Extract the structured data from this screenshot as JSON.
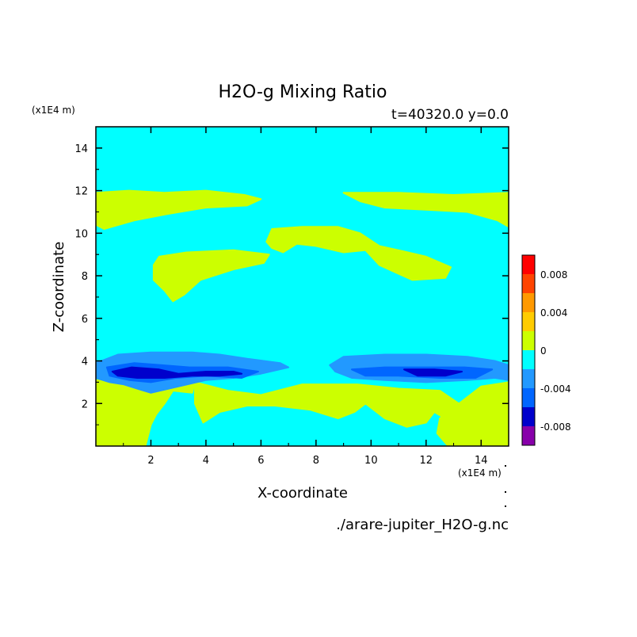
{
  "chart_data": {
    "type": "heatmap",
    "title": "H2O-g Mixing Ratio",
    "subtitle": "t=40320.0 y=0.0",
    "xlabel": "X-coordinate",
    "ylabel": "Z-coordinate",
    "x_unit": "(x1E4 m)",
    "y_unit": "(x1E4 m)",
    "source_file": "./arare-jupiter_H2O-g.nc",
    "xlim": [
      0,
      15
    ],
    "ylim": [
      0,
      15
    ],
    "x_ticks": [
      "2",
      "4",
      "6",
      "8",
      "10",
      "12",
      "14"
    ],
    "y_ticks": [
      "2",
      "4",
      "6",
      "8",
      "10",
      "12",
      "14"
    ],
    "grid": false,
    "legend_placement": "right",
    "colorbar": {
      "levels": [
        -0.01,
        -0.008,
        -0.006,
        -0.004,
        -0.002,
        0,
        0.002,
        0.004,
        0.006,
        0.008,
        0.01
      ],
      "colors": [
        "#8800aa",
        "#0000cc",
        "#0066ff",
        "#2299ff",
        "#00ffff",
        "#ccff00",
        "#ffcc00",
        "#ff9900",
        "#ff4400",
        "#ff0000",
        "#ffaaaa"
      ],
      "tick_labels": [
        "0.008",
        "0.004",
        "0",
        "-0.004",
        "-0.008"
      ],
      "tick_values": [
        0.008,
        0.004,
        0,
        -0.004,
        -0.008
      ]
    },
    "background_level_color": "#00ffff",
    "regions": [
      {
        "name": "upper-positive-band",
        "level": "0 to 0.002",
        "color": "#ccff00",
        "points": [
          [
            0,
            11.9
          ],
          [
            1.2,
            12
          ],
          [
            2.5,
            11.9
          ],
          [
            4,
            12
          ],
          [
            5.4,
            11.8
          ],
          [
            6,
            11.6
          ],
          [
            5.5,
            11.3
          ],
          [
            4,
            11.2
          ],
          [
            2.6,
            10.9
          ],
          [
            1.4,
            10.6
          ],
          [
            0.3,
            10.2
          ],
          [
            0,
            10.4
          ]
        ]
      },
      {
        "name": "upper-right-positive-band",
        "level": "0 to 0.002",
        "color": "#ccff00",
        "points": [
          [
            9,
            11.9
          ],
          [
            11,
            11.9
          ],
          [
            13,
            11.8
          ],
          [
            15,
            11.9
          ],
          [
            15,
            10.3
          ],
          [
            14.6,
            10.6
          ],
          [
            13.5,
            11
          ],
          [
            12,
            11.1
          ],
          [
            10.5,
            11.2
          ],
          [
            9.6,
            11.5
          ]
        ]
      },
      {
        "name": "middle-left-positive-patch",
        "level": "0 to 0.002",
        "color": "#ccff00",
        "points": [
          [
            2.3,
            8.9
          ],
          [
            3.3,
            9.1
          ],
          [
            5,
            9.2
          ],
          [
            6.3,
            9
          ],
          [
            6.1,
            8.6
          ],
          [
            5,
            8.3
          ],
          [
            3.8,
            7.8
          ],
          [
            3.2,
            7.1
          ],
          [
            2.8,
            6.8
          ],
          [
            2.5,
            7.3
          ],
          [
            2.1,
            7.8
          ],
          [
            2.1,
            8.5
          ]
        ]
      },
      {
        "name": "middle-center-positive-patch",
        "level": "0 to 0.002",
        "color": "#ccff00",
        "points": [
          [
            6.2,
            9.6
          ],
          [
            6.4,
            10.2
          ],
          [
            7.5,
            10.3
          ],
          [
            8.8,
            10.3
          ],
          [
            9.6,
            10
          ],
          [
            10.3,
            9.4
          ],
          [
            11,
            9.2
          ],
          [
            12,
            8.9
          ],
          [
            12.9,
            8.4
          ],
          [
            12.7,
            7.9
          ],
          [
            11.5,
            7.8
          ],
          [
            10.3,
            8.5
          ],
          [
            9.8,
            9.2
          ],
          [
            9,
            9.1
          ],
          [
            8,
            9.4
          ],
          [
            7.3,
            9.5
          ],
          [
            6.8,
            9.1
          ],
          [
            6.4,
            9.3
          ]
        ]
      },
      {
        "name": "lower-left-positive-region",
        "level": "0 to 0.002",
        "color": "#ccff00",
        "points": [
          [
            0,
            3.1
          ],
          [
            1.3,
            2.9
          ],
          [
            2.3,
            2.9
          ],
          [
            3.6,
            3
          ],
          [
            3.5,
            2.5
          ],
          [
            2.8,
            2.6
          ],
          [
            2.5,
            2
          ],
          [
            2.2,
            1.5
          ],
          [
            2,
            1
          ],
          [
            1.8,
            0
          ],
          [
            0,
            0
          ]
        ]
      },
      {
        "name": "lower-center-positive-region",
        "level": "0 to 0.002",
        "color": "#ccff00",
        "points": [
          [
            3.6,
            3
          ],
          [
            4.8,
            2.6
          ],
          [
            6,
            2.4
          ],
          [
            7.5,
            2.9
          ],
          [
            9.5,
            2.9
          ],
          [
            11,
            2.7
          ],
          [
            12.5,
            2.6
          ],
          [
            13.3,
            1.9
          ],
          [
            13.5,
            1.2
          ],
          [
            13.2,
            0.9
          ],
          [
            12.3,
            1.6
          ],
          [
            12,
            1.1
          ],
          [
            11.3,
            0.9
          ],
          [
            10.5,
            1.3
          ],
          [
            9.8,
            2
          ],
          [
            9.4,
            1.6
          ],
          [
            8.8,
            1.3
          ],
          [
            7.8,
            1.7
          ],
          [
            6.5,
            1.9
          ],
          [
            5.5,
            1.9
          ],
          [
            4.5,
            1.6
          ],
          [
            3.9,
            1.1
          ],
          [
            3.6,
            2
          ]
        ]
      },
      {
        "name": "lower-right-positive-region",
        "level": "0 to 0.002",
        "color": "#ccff00",
        "points": [
          [
            12.5,
            1.3
          ],
          [
            13.4,
            2.2
          ],
          [
            14,
            2.8
          ],
          [
            15,
            3
          ],
          [
            15,
            0
          ],
          [
            12.8,
            0
          ],
          [
            12.4,
            0.6
          ]
        ]
      },
      {
        "name": "mid-level-negative-band-left",
        "level": "-0.004 to 0",
        "color": "#2299ff",
        "points": [
          [
            0,
            3.9
          ],
          [
            0.8,
            4.3
          ],
          [
            2,
            4.4
          ],
          [
            3.5,
            4.4
          ],
          [
            4.5,
            4.3
          ],
          [
            5.5,
            4.1
          ],
          [
            6.7,
            3.9
          ],
          [
            7,
            3.7
          ],
          [
            6,
            3.4
          ],
          [
            5,
            3.2
          ],
          [
            4,
            3.1
          ],
          [
            3,
            2.8
          ],
          [
            2,
            2.5
          ],
          [
            1.5,
            2.7
          ],
          [
            1,
            2.9
          ],
          [
            0.5,
            3
          ],
          [
            0,
            3.2
          ]
        ]
      },
      {
        "name": "mid-level-negative-band-right",
        "level": "-0.004 to 0",
        "color": "#2299ff",
        "points": [
          [
            8.5,
            3.8
          ],
          [
            9,
            4.2
          ],
          [
            10.5,
            4.3
          ],
          [
            12,
            4.3
          ],
          [
            13.5,
            4.2
          ],
          [
            14.5,
            4
          ],
          [
            15,
            3.8
          ],
          [
            15,
            3.1
          ],
          [
            14.5,
            3.2
          ],
          [
            13.5,
            3.1
          ],
          [
            12,
            3
          ],
          [
            10.5,
            3.1
          ],
          [
            9.3,
            3.2
          ],
          [
            8.7,
            3.5
          ]
        ]
      },
      {
        "name": "deep-negative-core-left",
        "level": "-0.006 to -0.004",
        "color": "#0066ff",
        "points": [
          [
            0.4,
            3.7
          ],
          [
            1.4,
            3.9
          ],
          [
            2.4,
            3.8
          ],
          [
            3.4,
            3.7
          ],
          [
            4.8,
            3.7
          ],
          [
            5.9,
            3.5
          ],
          [
            5.3,
            3.2
          ],
          [
            4,
            3.3
          ],
          [
            2.9,
            3.2
          ],
          [
            2,
            3
          ],
          [
            1.2,
            3.1
          ],
          [
            0.5,
            3.3
          ]
        ]
      },
      {
        "name": "deep-negative-core-right",
        "level": "-0.006 to -0.004",
        "color": "#0066ff",
        "points": [
          [
            9.3,
            3.6
          ],
          [
            10.5,
            3.7
          ],
          [
            12,
            3.7
          ],
          [
            13.4,
            3.7
          ],
          [
            14.4,
            3.6
          ],
          [
            13.8,
            3.2
          ],
          [
            12.5,
            3.2
          ],
          [
            11,
            3.3
          ],
          [
            9.8,
            3.3
          ]
        ]
      },
      {
        "name": "deepest-negative-cores",
        "level": "-0.008 to -0.006",
        "color": "#0000cc",
        "points": [
          [
            0.6,
            3.5
          ],
          [
            1.3,
            3.7
          ],
          [
            2.3,
            3.6
          ],
          [
            3,
            3.4
          ],
          [
            4,
            3.5
          ],
          [
            5,
            3.5
          ],
          [
            5.3,
            3.4
          ],
          [
            4.5,
            3.3
          ],
          [
            3.5,
            3.3
          ],
          [
            2.5,
            3.2
          ],
          [
            1.5,
            3.2
          ],
          [
            0.8,
            3.3
          ]
        ]
      },
      {
        "name": "deepest-negative-core-right",
        "level": "-0.008 to -0.006",
        "color": "#0000cc",
        "points": [
          [
            11.2,
            3.6
          ],
          [
            12.3,
            3.6
          ],
          [
            13.3,
            3.5
          ],
          [
            12.7,
            3.3
          ],
          [
            11.7,
            3.3
          ]
        ]
      }
    ]
  }
}
